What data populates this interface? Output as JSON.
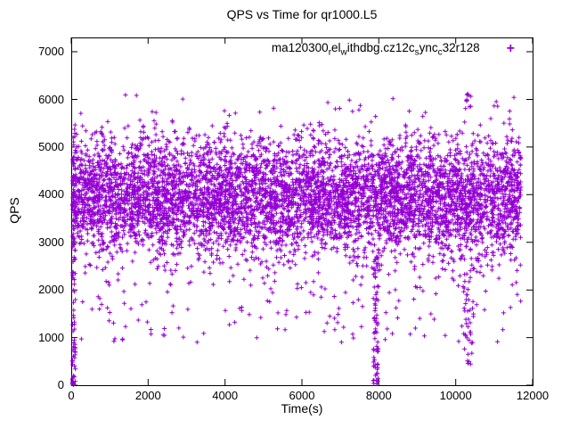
{
  "chart_data": {
    "type": "scatter",
    "title": "QPS vs Time for qr1000.L5",
    "xlabel": "Time(s)",
    "ylabel": "QPS",
    "xlim": [
      0,
      12000
    ],
    "ylim": [
      0,
      7300
    ],
    "xticks": [
      0,
      2000,
      4000,
      6000,
      8000,
      10000,
      12000
    ],
    "yticks": [
      0,
      1000,
      2000,
      3000,
      4000,
      5000,
      6000,
      7000
    ],
    "grid": false,
    "legend_position": "top-right-inside",
    "marker_px": 5,
    "series": [
      {
        "name": "ma120300_rel_withdbg.cz12c_sync_c32r128",
        "label_segments": [
          {
            "t": "ma120300",
            "sub": false
          },
          {
            "t": "r",
            "sub": true
          },
          {
            "t": "el",
            "sub": false
          },
          {
            "t": "w",
            "sub": true
          },
          {
            "t": "ithdbg.cz12c",
            "sub": false
          },
          {
            "t": "s",
            "sub": true
          },
          {
            "t": "ync",
            "sub": false
          },
          {
            "t": "c",
            "sub": true
          },
          {
            "t": "32r128",
            "sub": false
          }
        ],
        "marker": "plus",
        "color": "#9400D3",
        "summary": "Dense steady-state band ~2200-5500 QPS centered near 4000 from t=30s to t=11700s; startup ramp column near t=0; transient dips toward 0 near t=7900s and t=10300s; rare spikes to ~6100",
        "generator": {
          "seed": 42,
          "clusters": [
            {
              "name": "steady-band",
              "n": 6000,
              "x": [
                30,
                11700
              ],
              "y_dist": "normal",
              "mean": 3950,
              "std": 620,
              "y_clip": [
                1500,
                5600
              ]
            },
            {
              "name": "low-tail",
              "n": 140,
              "x": [
                100,
                11700
              ],
              "y_dist": "uniform",
              "y": [
                900,
                2300
              ]
            },
            {
              "name": "high-spikes",
              "n": 28,
              "x": [
                200,
                11700
              ],
              "y_dist": "uniform",
              "y": [
                5600,
                6100
              ]
            },
            {
              "name": "startup-column",
              "n": 90,
              "x": [
                30,
                110
              ],
              "y_dist": "uniform",
              "y": [
                0,
                5200
              ]
            },
            {
              "name": "zero-floor-start",
              "n": 12,
              "x": [
                20,
                60
              ],
              "y_dist": "uniform",
              "y": [
                0,
                80
              ]
            },
            {
              "name": "dip-7900",
              "n": 70,
              "x": [
                7850,
                7990
              ],
              "y_dist": "uniform",
              "y": [
                0,
                2800
              ]
            },
            {
              "name": "dip-10300",
              "n": 45,
              "x": [
                10180,
                10480
              ],
              "y_dist": "uniform",
              "y": [
                400,
                2600
              ]
            },
            {
              "name": "spike-cluster-10300",
              "n": 10,
              "x": [
                10250,
                10400
              ],
              "y_dist": "uniform",
              "y": [
                5800,
                6150
              ]
            }
          ]
        }
      }
    ]
  }
}
